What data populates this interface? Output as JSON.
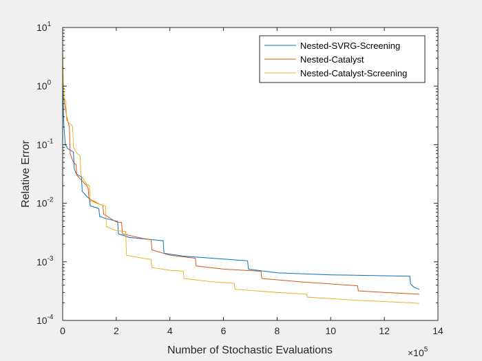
{
  "chart_data": {
    "type": "line",
    "xlabel": "Number of Stochastic Evaluations",
    "ylabel": "Relative Error",
    "x_exponent_label": "×10",
    "x_exponent_power": "5",
    "xlim": [
      0,
      1400000
    ],
    "ylim": [
      0.0001,
      10
    ],
    "yscale": "log",
    "xticks": [
      0,
      200000,
      400000,
      600000,
      800000,
      1000000,
      1200000,
      1400000
    ],
    "xtick_labels": [
      "0",
      "2",
      "4",
      "6",
      "8",
      "10",
      "12",
      "14"
    ],
    "yticks": [
      0.0001,
      0.001,
      0.01,
      0.1,
      1,
      10
    ],
    "ytick_bases": [
      "10",
      "10",
      "10",
      "10",
      "10",
      "10"
    ],
    "ytick_powers": [
      "-4",
      "-3",
      "-2",
      "-1",
      "0",
      "1"
    ],
    "grid": false,
    "legend_position": "top-right",
    "series": [
      {
        "name": "Nested-SVRG-Screening",
        "color": "#0072BD",
        "points": [
          [
            0,
            1.3
          ],
          [
            2000,
            0.5
          ],
          [
            5000,
            0.2
          ],
          [
            10000,
            0.1
          ],
          [
            20000,
            0.085
          ],
          [
            40000,
            0.075
          ],
          [
            43000,
            0.04
          ],
          [
            50000,
            0.032
          ],
          [
            70000,
            0.028
          ],
          [
            73000,
            0.016
          ],
          [
            90000,
            0.013
          ],
          [
            100000,
            0.012
          ],
          [
            103000,
            0.009
          ],
          [
            130000,
            0.0083
          ],
          [
            135000,
            0.008
          ],
          [
            138000,
            0.006
          ],
          [
            160000,
            0.0055
          ],
          [
            205000,
            0.0049
          ],
          [
            208000,
            0.003
          ],
          [
            250000,
            0.0026
          ],
          [
            370000,
            0.0023
          ],
          [
            375000,
            0.0023
          ],
          [
            378000,
            0.0014
          ],
          [
            450000,
            0.00125
          ],
          [
            680000,
            0.00105
          ],
          [
            690000,
            0.00104
          ],
          [
            693000,
            0.00075
          ],
          [
            800000,
            0.00065
          ],
          [
            1000000,
            0.0006
          ],
          [
            1290000,
            0.00057
          ],
          [
            1295000,
            0.00057
          ],
          [
            1298000,
            0.00042
          ],
          [
            1310000,
            0.00037
          ],
          [
            1330000,
            0.00034
          ]
        ]
      },
      {
        "name": "Nested-Catalyst",
        "color": "#D95319",
        "points": [
          [
            0,
            2.5
          ],
          [
            5000,
            0.6
          ],
          [
            15000,
            0.3
          ],
          [
            25000,
            0.2
          ],
          [
            28000,
            0.07
          ],
          [
            40000,
            0.05
          ],
          [
            50000,
            0.045
          ],
          [
            53000,
            0.03
          ],
          [
            90000,
            0.02
          ],
          [
            95000,
            0.018
          ],
          [
            98000,
            0.012
          ],
          [
            140000,
            0.0095
          ],
          [
            150000,
            0.0092
          ],
          [
            153000,
            0.0065
          ],
          [
            200000,
            0.0048
          ],
          [
            220000,
            0.0047
          ],
          [
            223000,
            0.003
          ],
          [
            300000,
            0.0025
          ],
          [
            330000,
            0.0024
          ],
          [
            333000,
            0.0016
          ],
          [
            400000,
            0.0013
          ],
          [
            495000,
            0.00115
          ],
          [
            498000,
            0.00085
          ],
          [
            600000,
            0.00075
          ],
          [
            740000,
            0.00069
          ],
          [
            743000,
            0.00052
          ],
          [
            900000,
            0.00045
          ],
          [
            1100000,
            0.00039
          ],
          [
            1103000,
            0.00032
          ],
          [
            1200000,
            0.0003
          ],
          [
            1330000,
            0.00028
          ]
        ]
      },
      {
        "name": "Nested-Catalyst-Screening",
        "color": "#EDB120",
        "points": [
          [
            0,
            4.0
          ],
          [
            3000,
            1.0
          ],
          [
            6000,
            0.6
          ],
          [
            12000,
            0.55
          ],
          [
            15000,
            0.26
          ],
          [
            30000,
            0.22
          ],
          [
            37000,
            0.21
          ],
          [
            40000,
            0.09
          ],
          [
            55000,
            0.07
          ],
          [
            65000,
            0.065
          ],
          [
            68000,
            0.03
          ],
          [
            90000,
            0.021
          ],
          [
            100000,
            0.02
          ],
          [
            103000,
            0.011
          ],
          [
            140000,
            0.0095
          ],
          [
            160000,
            0.009
          ],
          [
            163000,
            0.004
          ],
          [
            200000,
            0.0034
          ],
          [
            235000,
            0.0033
          ],
          [
            238000,
            0.0013
          ],
          [
            300000,
            0.00115
          ],
          [
            330000,
            0.0011
          ],
          [
            333000,
            0.0008
          ],
          [
            400000,
            0.00072
          ],
          [
            450000,
            0.00069
          ],
          [
            453000,
            0.00052
          ],
          [
            550000,
            0.00046
          ],
          [
            640000,
            0.00043
          ],
          [
            643000,
            0.00034
          ],
          [
            800000,
            0.0003
          ],
          [
            910000,
            0.00028
          ],
          [
            913000,
            0.00025
          ],
          [
            1100000,
            0.00022
          ],
          [
            1300000,
            0.0002
          ],
          [
            1330000,
            0.000195
          ]
        ]
      }
    ]
  }
}
